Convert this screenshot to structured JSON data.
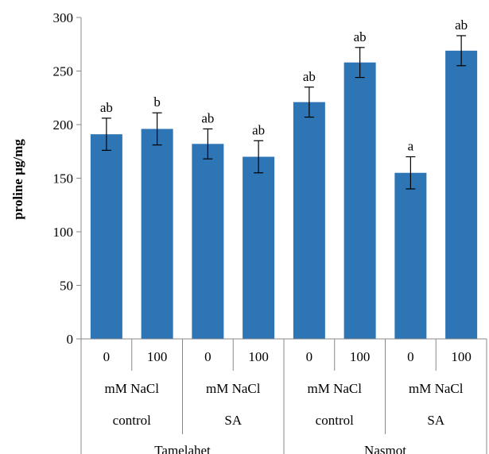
{
  "chart_data": {
    "type": "bar",
    "ylabel": "proline µg/mg",
    "ylim": [
      0,
      300
    ],
    "yticks": [
      "0",
      "50",
      "100",
      "150",
      "200",
      "250",
      "300"
    ],
    "grid": false,
    "legend": "none",
    "bar_color": "#2e75b6",
    "categories": [
      {
        "level1": "0",
        "level2": "mM NaCl",
        "level3": "control",
        "level4": "Tamelahet",
        "value": 191,
        "error": 15,
        "label": "ab"
      },
      {
        "level1": "100",
        "level2": "mM NaCl",
        "level3": "control",
        "level4": "Tamelahet",
        "value": 196,
        "error": 15,
        "label": "b"
      },
      {
        "level1": "0",
        "level2": "mM NaCl",
        "level3": "SA",
        "level4": "Tamelahet",
        "value": 182,
        "error": 14,
        "label": "ab"
      },
      {
        "level1": "100",
        "level2": "mM NaCl",
        "level3": "SA",
        "level4": "Tamelahet",
        "value": 170,
        "error": 15,
        "label": "ab"
      },
      {
        "level1": "0",
        "level2": "mM NaCl",
        "level3": "control",
        "level4": "Nasmot",
        "value": 221,
        "error": 14,
        "label": "ab"
      },
      {
        "level1": "100",
        "level2": "mM NaCl",
        "level3": "control",
        "level4": "Nasmot",
        "value": 258,
        "error": 14,
        "label": "ab"
      },
      {
        "level1": "0",
        "level2": "mM NaCl",
        "level3": "SA",
        "level4": "Nasmot",
        "value": 155,
        "error": 15,
        "label": "a"
      },
      {
        "level1": "100",
        "level2": "mM NaCl",
        "level3": "SA",
        "level4": "Nasmot",
        "value": 269,
        "error": 14,
        "label": "ab"
      }
    ],
    "group_labels": {
      "level2": [
        "mM NaCl",
        "mM NaCl",
        "mM NaCl",
        "mM NaCl"
      ],
      "level3": [
        "control",
        "SA",
        "control",
        "SA"
      ],
      "level4": [
        "Tamelahet",
        "Nasmot"
      ]
    }
  }
}
